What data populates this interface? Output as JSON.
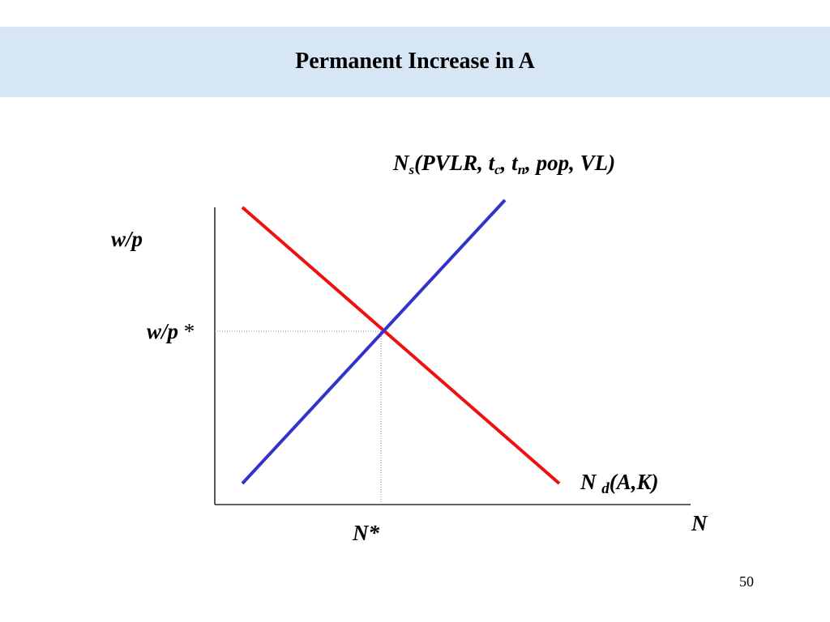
{
  "slide": {
    "title": "Permanent Increase in A",
    "page_number": "50"
  },
  "diagram": {
    "y_axis_label": "w/p",
    "x_axis_label": "N",
    "equilibrium_wage_label": "w/p",
    "equilibrium_wage_star": "*",
    "equilibrium_quantity_label": "N*",
    "supply_label": {
      "base": "N",
      "subscript": "s",
      "args_open": "(PVLR, t",
      "tc_sub": "c",
      "mid": ", t",
      "tn_sub": "n",
      "args_close": ", pop, VL)"
    },
    "demand_label": {
      "base": "N",
      "subscript": "d",
      "args": "(A,K)"
    },
    "colors": {
      "supply": "#3333cc",
      "demand": "#ee1111",
      "axes": "#000000",
      "guides": "#888888",
      "title_band": "#d6e6f4"
    }
  }
}
